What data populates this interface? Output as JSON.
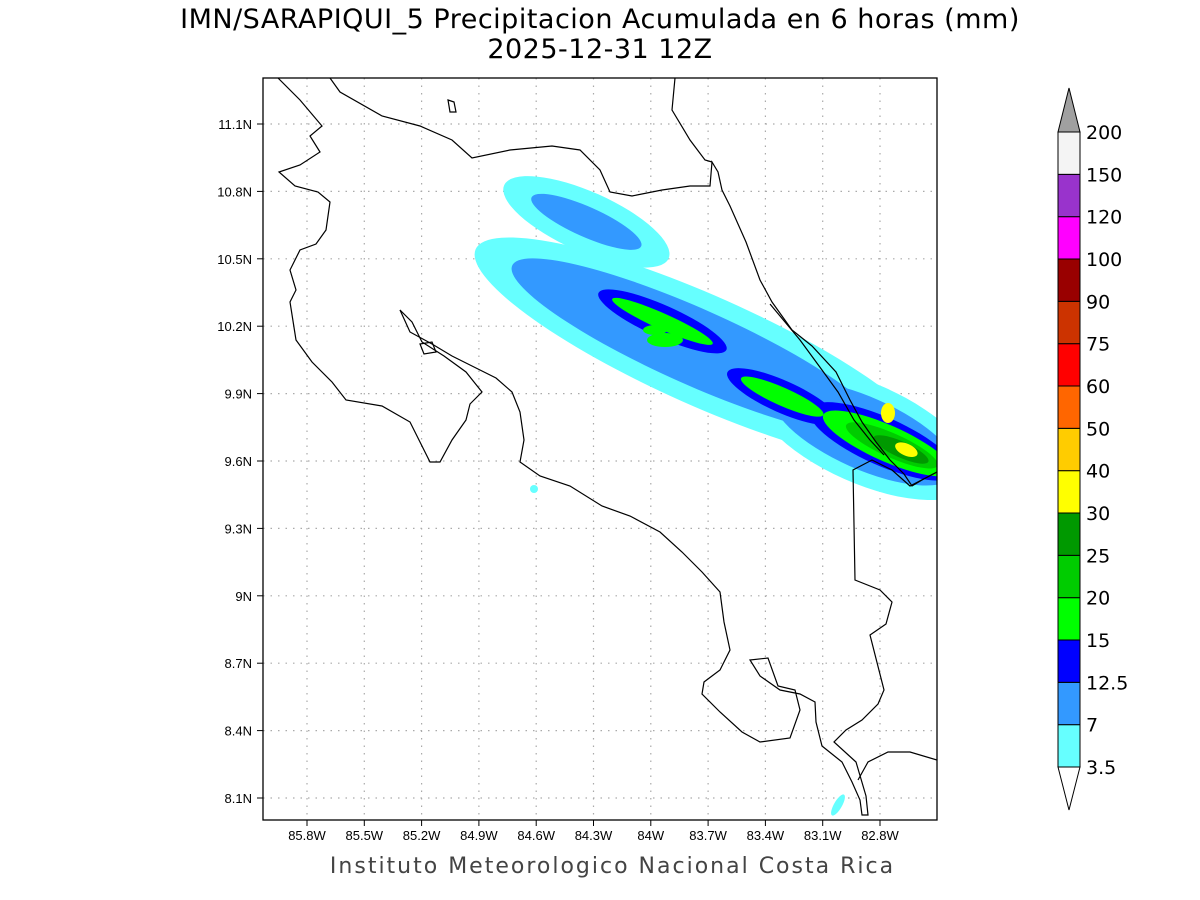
{
  "title": {
    "line1": "IMN/SARAPIQUI_5 Precipitacion Acumulada en 6 horas (mm)",
    "line2": "2025-12-31 12Z"
  },
  "footer": "Instituto Meteorologico Nacional Costa Rica",
  "map": {
    "lon_ticks": [
      "85.8W",
      "85.5W",
      "85.2W",
      "84.9W",
      "84.6W",
      "84.3W",
      "84W",
      "83.7W",
      "83.4W",
      "83.1W",
      "82.8W"
    ],
    "lat_ticks": [
      "11.1N",
      "10.8N",
      "10.5N",
      "10.2N",
      "9.9N",
      "9.6N",
      "9.3N",
      "9N",
      "8.7N",
      "8.4N",
      "8.1N"
    ]
  },
  "colorbar": {
    "levels": [
      "3.5",
      "7",
      "12.5",
      "15",
      "20",
      "25",
      "30",
      "40",
      "50",
      "60",
      "75",
      "90",
      "100",
      "120",
      "150",
      "200"
    ],
    "colors": [
      "#66ffff",
      "#3399ff",
      "#0000ff",
      "#00ff00",
      "#00cc00",
      "#009900",
      "#ffff00",
      "#ffcc00",
      "#ff6600",
      "#ff0000",
      "#cc3300",
      "#990000",
      "#ff00ff",
      "#9933cc",
      "#f4f4f4"
    ],
    "over_color": "#a0a0a0"
  }
}
